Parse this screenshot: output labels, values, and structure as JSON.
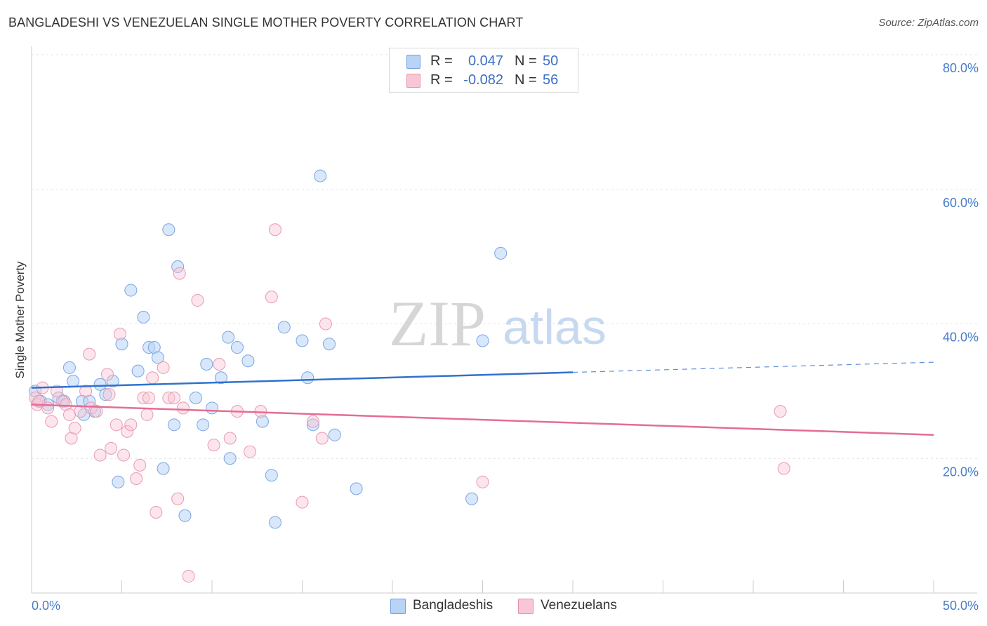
{
  "title": "BANGLADESHI VS VENEZUELAN SINGLE MOTHER POVERTY CORRELATION CHART",
  "source": "Source: ZipAtlas.com",
  "watermark": {
    "zip": "ZIP",
    "atlas": "atlas"
  },
  "legend": {
    "r_label": "R =",
    "n_label": "N =",
    "rows": [
      {
        "r": "0.047",
        "n": "50",
        "swatch_fill": "#b8d3f5",
        "swatch_stroke": "#6f9ee0"
      },
      {
        "r": "-0.082",
        "n": "56",
        "swatch_fill": "#f9c6d5",
        "swatch_stroke": "#e690aa"
      }
    ]
  },
  "bottom_legend": [
    {
      "label": "Bangladeshis",
      "fill": "#b8d3f5",
      "stroke": "#6f9ee0"
    },
    {
      "label": "Venezuelans",
      "fill": "#f9c6d5",
      "stroke": "#e690aa"
    }
  ],
  "chart_data": {
    "type": "scatter",
    "title": "BANGLADESHI VS VENEZUELAN SINGLE MOTHER POVERTY CORRELATION CHART",
    "xlabel": "",
    "ylabel": "Single Mother Poverty",
    "x_tick_labels": [
      "0.0%",
      "50.0%"
    ],
    "y_tick_labels": [
      "20.0%",
      "40.0%",
      "60.0%",
      "80.0%"
    ],
    "xlim": [
      0,
      50
    ],
    "ylim": [
      0,
      80
    ],
    "grid": true,
    "legend_position": "top-center",
    "series": [
      {
        "name": "Bangladeshis",
        "color": "#3d7fd9",
        "points": [
          [
            0.2,
            30.0
          ],
          [
            0.5,
            28.5
          ],
          [
            0.9,
            28.0
          ],
          [
            1.5,
            29.0
          ],
          [
            1.8,
            28.5
          ],
          [
            2.1,
            33.5
          ],
          [
            2.3,
            31.5
          ],
          [
            2.8,
            28.5
          ],
          [
            2.9,
            26.5
          ],
          [
            3.2,
            28.5
          ],
          [
            3.5,
            27.0
          ],
          [
            3.8,
            31.0
          ],
          [
            4.1,
            29.5
          ],
          [
            4.5,
            31.5
          ],
          [
            4.8,
            16.5
          ],
          [
            5.0,
            37.0
          ],
          [
            5.5,
            45.0
          ],
          [
            5.9,
            33.0
          ],
          [
            6.2,
            41.0
          ],
          [
            6.5,
            36.5
          ],
          [
            6.8,
            36.5
          ],
          [
            7.0,
            35.0
          ],
          [
            7.3,
            18.5
          ],
          [
            7.6,
            54.0
          ],
          [
            7.9,
            25.0
          ],
          [
            8.1,
            48.5
          ],
          [
            8.5,
            11.5
          ],
          [
            9.1,
            29.0
          ],
          [
            9.5,
            25.0
          ],
          [
            9.7,
            34.0
          ],
          [
            10.0,
            27.5
          ],
          [
            10.5,
            32.0
          ],
          [
            10.9,
            38.0
          ],
          [
            11.0,
            20.0
          ],
          [
            11.4,
            36.5
          ],
          [
            12.0,
            34.5
          ],
          [
            12.8,
            25.5
          ],
          [
            13.3,
            17.5
          ],
          [
            13.5,
            10.5
          ],
          [
            14.0,
            39.5
          ],
          [
            15.0,
            37.5
          ],
          [
            15.3,
            32.0
          ],
          [
            15.6,
            25.0
          ],
          [
            16.0,
            62.0
          ],
          [
            16.5,
            37.0
          ],
          [
            16.8,
            23.5
          ],
          [
            18.0,
            15.5
          ],
          [
            24.4,
            14.0
          ],
          [
            25.0,
            37.5
          ],
          [
            26.0,
            50.5
          ]
        ],
        "trend": {
          "x": [
            0,
            30,
            50
          ],
          "y": [
            30.5,
            32.8,
            34.3
          ],
          "solid_until": 30
        }
      },
      {
        "name": "Venezuelans",
        "color": "#e36d96",
        "points": [
          [
            0.2,
            29.0
          ],
          [
            0.3,
            28.0
          ],
          [
            0.6,
            30.5
          ],
          [
            0.9,
            27.5
          ],
          [
            1.1,
            25.5
          ],
          [
            1.4,
            30.0
          ],
          [
            1.7,
            28.5
          ],
          [
            1.9,
            28.0
          ],
          [
            2.1,
            26.5
          ],
          [
            2.2,
            23.0
          ],
          [
            2.4,
            24.5
          ],
          [
            2.7,
            27.0
          ],
          [
            3.0,
            30.0
          ],
          [
            3.2,
            35.5
          ],
          [
            3.3,
            27.5
          ],
          [
            3.6,
            27.0
          ],
          [
            3.8,
            20.5
          ],
          [
            4.2,
            32.5
          ],
          [
            4.3,
            29.5
          ],
          [
            4.4,
            21.5
          ],
          [
            4.7,
            25.0
          ],
          [
            4.9,
            38.5
          ],
          [
            5.1,
            20.5
          ],
          [
            5.3,
            24.0
          ],
          [
            5.5,
            25.0
          ],
          [
            5.8,
            17.0
          ],
          [
            6.0,
            19.0
          ],
          [
            6.2,
            29.0
          ],
          [
            6.4,
            26.5
          ],
          [
            6.5,
            29.0
          ],
          [
            6.7,
            32.0
          ],
          [
            6.9,
            12.0
          ],
          [
            7.3,
            33.5
          ],
          [
            7.6,
            29.0
          ],
          [
            7.9,
            29.0
          ],
          [
            8.1,
            14.0
          ],
          [
            8.2,
            47.5
          ],
          [
            8.4,
            27.5
          ],
          [
            8.7,
            2.5
          ],
          [
            9.2,
            43.5
          ],
          [
            10.1,
            22.0
          ],
          [
            10.4,
            34.0
          ],
          [
            11.0,
            23.0
          ],
          [
            11.4,
            27.0
          ],
          [
            12.1,
            21.0
          ],
          [
            12.7,
            27.0
          ],
          [
            13.3,
            44.0
          ],
          [
            13.5,
            54.0
          ],
          [
            15.0,
            13.5
          ],
          [
            15.6,
            25.5
          ],
          [
            16.1,
            23.0
          ],
          [
            16.3,
            40.0
          ],
          [
            25.0,
            16.5
          ],
          [
            41.5,
            27.0
          ],
          [
            41.7,
            18.5
          ],
          [
            0.4,
            28.5
          ]
        ],
        "trend": {
          "x": [
            0,
            50
          ],
          "y": [
            28.0,
            23.5
          ]
        }
      }
    ]
  }
}
